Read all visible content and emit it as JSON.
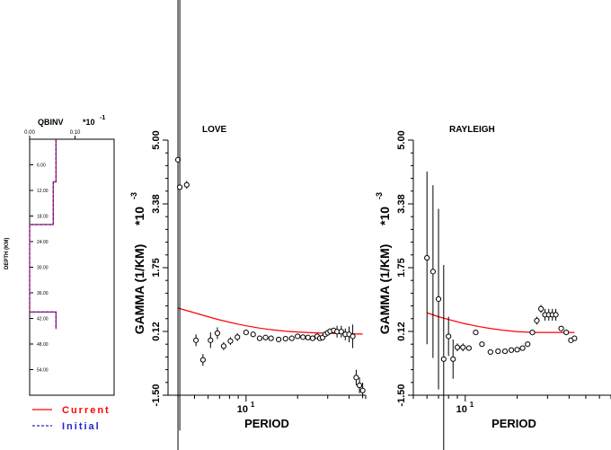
{
  "chart_data": [
    {
      "type": "line",
      "title": "QBINV",
      "exponent_label": "*10",
      "exponent_power": "-1",
      "xlabel": "",
      "ylabel": "DEPTH (KM)",
      "x_tick_labels": [
        "0.00",
        "0.10"
      ],
      "xlim": [
        0.0,
        0.186
      ],
      "y_tick_labels": [
        "6.00",
        "12.00",
        "18.00",
        "24.00",
        "30.00",
        "36.00",
        "42.00",
        "48.00",
        "54.00"
      ],
      "y_ticks": [
        6,
        12,
        18,
        24,
        30,
        36,
        42,
        48,
        54
      ],
      "ylim": [
        0,
        60
      ],
      "series": [
        {
          "name": "Current",
          "color": "#ff0000",
          "dash": "solid",
          "points": [
            [
              0.058,
              0
            ],
            [
              0.058,
              10
            ],
            [
              0.052,
              10
            ],
            [
              0.052,
              20
            ],
            [
              0.0,
              20
            ],
            [
              0.0,
              40.5
            ],
            [
              0.058,
              40.5
            ],
            [
              0.058,
              44.5
            ]
          ]
        },
        {
          "name": "Initial",
          "color": "#2222dd",
          "dash": "dashed",
          "points": [
            [
              0.058,
              0
            ],
            [
              0.058,
              10
            ],
            [
              0.052,
              10
            ],
            [
              0.052,
              20
            ],
            [
              0.0,
              20
            ],
            [
              0.0,
              40.5
            ],
            [
              0.058,
              40.5
            ],
            [
              0.058,
              44.5
            ]
          ]
        }
      ],
      "legend": [
        "Current",
        "Initial"
      ],
      "legend_position": "bottom"
    },
    {
      "type": "scatter",
      "title": "LOVE",
      "xlabel": "PERIOD",
      "ylabel": "GAMMA (1/KM)",
      "y_exponent_label": "*10",
      "y_exponent_power": "-3",
      "x_scale": "log",
      "x_tick_labels": [
        "10"
      ],
      "x_tick_power": "1",
      "xlim": [
        3.5,
        50
      ],
      "y_tick_labels": [
        "-1.50",
        "0.12",
        "1.75",
        "3.38",
        "5.00"
      ],
      "y_ticks": [
        -1.5,
        0.125,
        1.75,
        3.375,
        5.0
      ],
      "ylim": [
        -1.5,
        5.0
      ],
      "observed": [
        {
          "x": 4.0,
          "y": 4.5,
          "err": 8.0
        },
        {
          "x": 4.1,
          "y": 3.8,
          "err": 6.2
        },
        {
          "x": 4.5,
          "y": 3.86,
          "err": 0.1
        },
        {
          "x": 5.1,
          "y": -0.1,
          "err": 0.15
        },
        {
          "x": 5.6,
          "y": -0.6,
          "err": 0.15
        },
        {
          "x": 6.2,
          "y": -0.1,
          "err": 0.2
        },
        {
          "x": 6.8,
          "y": 0.08,
          "err": 0.15
        },
        {
          "x": 7.4,
          "y": -0.25,
          "err": 0.1
        },
        {
          "x": 8.1,
          "y": -0.12,
          "err": 0.1
        },
        {
          "x": 8.9,
          "y": -0.02,
          "err": 0.1
        },
        {
          "x": 10.0,
          "y": 0.1,
          "err": 0.05
        },
        {
          "x": 11.0,
          "y": 0.05,
          "err": 0.05
        },
        {
          "x": 12.0,
          "y": -0.05,
          "err": 0.05
        },
        {
          "x": 13.0,
          "y": -0.03,
          "err": 0.05
        },
        {
          "x": 14.0,
          "y": -0.05,
          "err": 0.05
        },
        {
          "x": 15.5,
          "y": -0.08,
          "err": 0.05
        },
        {
          "x": 17.0,
          "y": -0.06,
          "err": 0.05
        },
        {
          "x": 18.5,
          "y": -0.05,
          "err": 0.05
        },
        {
          "x": 20.0,
          "y": -0.0,
          "err": 0.05
        },
        {
          "x": 21.5,
          "y": -0.02,
          "err": 0.05
        },
        {
          "x": 23.0,
          "y": -0.03,
          "err": 0.05
        },
        {
          "x": 24.5,
          "y": -0.05,
          "err": 0.05
        },
        {
          "x": 26.0,
          "y": -0.0,
          "err": 0.05
        },
        {
          "x": 27.0,
          "y": -0.05,
          "err": 0.05
        },
        {
          "x": 28.0,
          "y": -0.03,
          "err": 0.05
        },
        {
          "x": 29.0,
          "y": 0.05,
          "err": 0.05
        },
        {
          "x": 30.0,
          "y": 0.09,
          "err": 0.05
        },
        {
          "x": 31.0,
          "y": 0.13,
          "err": 0.05
        },
        {
          "x": 32.5,
          "y": 0.15,
          "err": 0.05
        },
        {
          "x": 34.0,
          "y": 0.12,
          "err": 0.15
        },
        {
          "x": 36.0,
          "y": 0.12,
          "err": 0.15
        },
        {
          "x": 38.0,
          "y": 0.05,
          "err": 0.15
        },
        {
          "x": 40.0,
          "y": 0.05,
          "err": 0.2
        },
        {
          "x": 42.0,
          "y": 0.0,
          "err": 0.3
        },
        {
          "x": 44.0,
          "y": -1.05,
          "err": 0.2
        },
        {
          "x": 46.0,
          "y": -1.25,
          "err": 0.2
        },
        {
          "x": 48.0,
          "y": -1.38,
          "err": 0.2
        }
      ],
      "predicted": {
        "color": "#ff0000",
        "x": [
          4.0,
          5.0,
          6.0,
          7.0,
          8.0,
          9.0,
          10.0,
          12.0,
          14.0,
          17.0,
          20.0,
          25.0,
          30.0,
          35.0,
          40.0,
          48.0
        ],
        "y": [
          0.72,
          0.6,
          0.5,
          0.42,
          0.36,
          0.31,
          0.27,
          0.21,
          0.17,
          0.13,
          0.11,
          0.09,
          0.08,
          0.07,
          0.065,
          0.06
        ]
      }
    },
    {
      "type": "scatter",
      "title": "RAYLEIGH",
      "xlabel": "PERIOD",
      "ylabel": "GAMMA (1/KM)",
      "y_exponent_label": "*10",
      "y_exponent_power": "-3",
      "x_scale": "log",
      "x_tick_labels": [
        "10"
      ],
      "x_tick_power": "1",
      "xlim": [
        5,
        70
      ],
      "y_tick_labels": [
        "-1.50",
        "0.12",
        "1.75",
        "3.38",
        "5.00"
      ],
      "y_ticks": [
        -1.5,
        0.125,
        1.75,
        3.375,
        5.0
      ],
      "ylim": [
        -1.5,
        5.0
      ],
      "observed": [
        {
          "x": 6.0,
          "y": 2.0,
          "err": 2.2
        },
        {
          "x": 6.5,
          "y": 1.65,
          "err": 2.2
        },
        {
          "x": 7.0,
          "y": 0.95,
          "err": 2.3
        },
        {
          "x": 7.5,
          "y": -0.58,
          "err": 2.4
        },
        {
          "x": 8.0,
          "y": 0.0,
          "err": 0.5
        },
        {
          "x": 8.5,
          "y": -0.58,
          "err": 0.5
        },
        {
          "x": 9.0,
          "y": -0.28,
          "err": 0.1
        },
        {
          "x": 9.7,
          "y": -0.28,
          "err": 0.1
        },
        {
          "x": 10.5,
          "y": -0.3,
          "err": 0.05
        },
        {
          "x": 11.5,
          "y": 0.1,
          "err": 0.05
        },
        {
          "x": 12.5,
          "y": -0.2,
          "err": 0.05
        },
        {
          "x": 14.0,
          "y": -0.4,
          "err": 0.05
        },
        {
          "x": 15.5,
          "y": -0.38,
          "err": 0.05
        },
        {
          "x": 17.0,
          "y": -0.38,
          "err": 0.05
        },
        {
          "x": 18.5,
          "y": -0.35,
          "err": 0.05
        },
        {
          "x": 20.0,
          "y": -0.34,
          "err": 0.05
        },
        {
          "x": 21.5,
          "y": -0.3,
          "err": 0.05
        },
        {
          "x": 23.0,
          "y": -0.2,
          "err": 0.05
        },
        {
          "x": 24.5,
          "y": 0.1,
          "err": 0.05
        },
        {
          "x": 26.0,
          "y": 0.4,
          "err": 0.1
        },
        {
          "x": 27.5,
          "y": 0.7,
          "err": 0.1
        },
        {
          "x": 29.0,
          "y": 0.55,
          "err": 0.15
        },
        {
          "x": 30.5,
          "y": 0.55,
          "err": 0.15
        },
        {
          "x": 32.0,
          "y": 0.55,
          "err": 0.15
        },
        {
          "x": 33.5,
          "y": 0.55,
          "err": 0.15
        },
        {
          "x": 36.0,
          "y": 0.2,
          "err": 0.05
        },
        {
          "x": 38.5,
          "y": 0.1,
          "err": 0.05
        },
        {
          "x": 41.0,
          "y": -0.1,
          "err": 0.05
        },
        {
          "x": 43.0,
          "y": -0.05,
          "err": 0.05
        }
      ],
      "predicted": {
        "color": "#ff0000",
        "x": [
          6.0,
          7.0,
          8.0,
          9.0,
          10.0,
          12.0,
          14.0,
          17.0,
          20.0,
          25.0,
          30.0,
          35.0,
          43.0
        ],
        "y": [
          0.6,
          0.5,
          0.43,
          0.37,
          0.32,
          0.25,
          0.2,
          0.15,
          0.12,
          0.1,
          0.1,
          0.1,
          0.1
        ]
      }
    }
  ]
}
